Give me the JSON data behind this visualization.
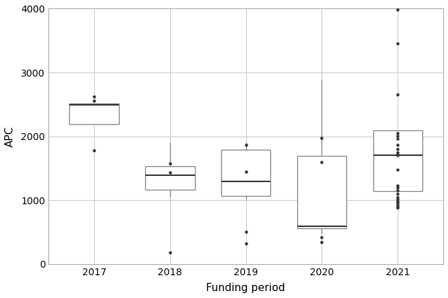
{
  "years": [
    "2017",
    "2018",
    "2019",
    "2020",
    "2021"
  ],
  "boxes": [
    {
      "q1": 2190,
      "median": 2490,
      "q3": 2510,
      "whislo": 2190,
      "whishi": 2510,
      "fliers": [
        1780,
        2560,
        2620
      ]
    },
    {
      "q1": 1170,
      "median": 1390,
      "q3": 1530,
      "whislo": 1060,
      "whishi": 1900,
      "fliers": [
        185,
        1430,
        1580
      ]
    },
    {
      "q1": 1070,
      "median": 1290,
      "q3": 1790,
      "whislo": 1020,
      "whishi": 1900,
      "fliers": [
        320,
        510,
        1450,
        1870
      ]
    },
    {
      "q1": 560,
      "median": 590,
      "q3": 1690,
      "whislo": 480,
      "whishi": 2880,
      "fliers": [
        340,
        420,
        1600,
        1980
      ]
    },
    {
      "q1": 1140,
      "median": 1700,
      "q3": 2090,
      "whislo": 1140,
      "whishi": 2090,
      "fliers": [
        880,
        900,
        930,
        960,
        980,
        1010,
        1050,
        1100,
        1150,
        1200,
        1230,
        1480,
        1700,
        1720,
        1750,
        1800,
        1870,
        1960,
        2010,
        2050,
        2650,
        3450,
        3980
      ]
    }
  ],
  "xlabel": "Funding period",
  "ylabel": "APC",
  "ylim": [
    0,
    4000
  ],
  "yticks": [
    0,
    1000,
    2000,
    3000,
    4000
  ],
  "box_color": "white",
  "box_edge_color": "#7f7f7f",
  "median_color": "#333333",
  "whisker_color": "#7f7f7f",
  "flier_color": "#333333",
  "grid_color": "#cccccc",
  "background_color": "white",
  "box_width": 0.65,
  "panel_border_color": "#ababab"
}
